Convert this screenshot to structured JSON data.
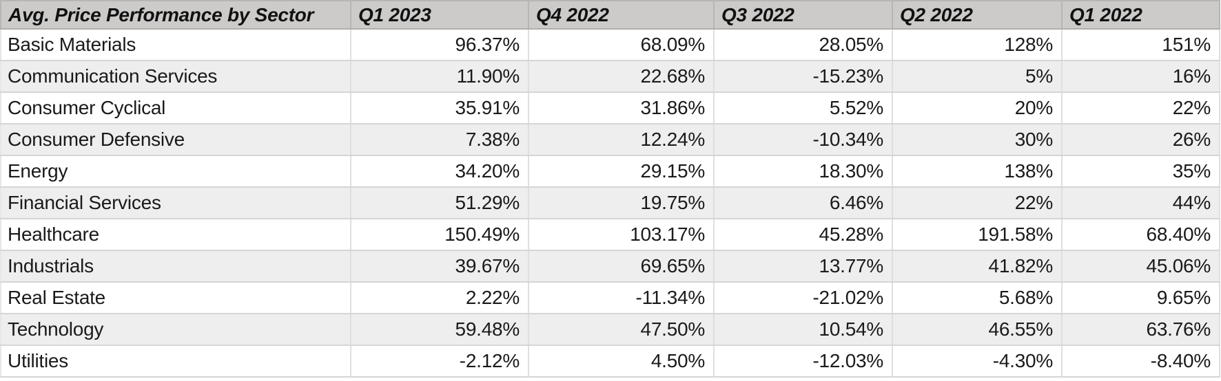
{
  "table": {
    "title": "Avg. Price Performance by Sector",
    "columns": [
      "Avg. Price Performance by Sector",
      "Q1 2023",
      "Q4 2022",
      "Q3 2022",
      "Q2 2022",
      "Q1 2022"
    ],
    "rows": [
      {
        "sector": "Basic Materials",
        "values": [
          "96.37%",
          "68.09%",
          "28.05%",
          "128%",
          "151%"
        ]
      },
      {
        "sector": "Communication Services",
        "values": [
          "11.90%",
          "22.68%",
          "-15.23%",
          "5%",
          "16%"
        ]
      },
      {
        "sector": "Consumer Cyclical",
        "values": [
          "35.91%",
          "31.86%",
          "5.52%",
          "20%",
          "22%"
        ]
      },
      {
        "sector": "Consumer Defensive",
        "values": [
          "7.38%",
          "12.24%",
          "-10.34%",
          "30%",
          "26%"
        ]
      },
      {
        "sector": "Energy",
        "values": [
          "34.20%",
          "29.15%",
          "18.30%",
          "138%",
          "35%"
        ]
      },
      {
        "sector": "Financial Services",
        "values": [
          "51.29%",
          "19.75%",
          "6.46%",
          "22%",
          "44%"
        ]
      },
      {
        "sector": "Healthcare",
        "values": [
          "150.49%",
          "103.17%",
          "45.28%",
          "191.58%",
          "68.40%"
        ]
      },
      {
        "sector": "Industrials",
        "values": [
          "39.67%",
          "69.65%",
          "13.77%",
          "41.82%",
          "45.06%"
        ]
      },
      {
        "sector": "Real Estate",
        "values": [
          "2.22%",
          "-11.34%",
          "-21.02%",
          "5.68%",
          "9.65%"
        ]
      },
      {
        "sector": "Technology",
        "values": [
          "59.48%",
          "47.50%",
          "10.54%",
          "46.55%",
          "63.76%"
        ]
      },
      {
        "sector": "Utilities",
        "values": [
          "-2.12%",
          "4.50%",
          "-12.03%",
          "-4.30%",
          "-8.40%"
        ]
      }
    ]
  },
  "colors": {
    "header_bg": "#cccbca",
    "header_border": "#b8b6b4",
    "stripe_bg": "#eeeeee",
    "gridline_horizontal": "#d5d5d5",
    "gridline_vertical": "#dfdfdf",
    "text": "#1a1a1a",
    "row_bg": "#ffffff"
  },
  "chart_data": {
    "type": "table",
    "title": "Avg. Price Performance by Sector",
    "columns": [
      "Sector",
      "Q1 2023",
      "Q4 2022",
      "Q3 2022",
      "Q2 2022",
      "Q1 2022"
    ],
    "unit": "percent",
    "rows": [
      [
        "Basic Materials",
        96.37,
        68.09,
        28.05,
        128,
        151
      ],
      [
        "Communication Services",
        11.9,
        22.68,
        -15.23,
        5,
        16
      ],
      [
        "Consumer Cyclical",
        35.91,
        31.86,
        5.52,
        20,
        22
      ],
      [
        "Consumer Defensive",
        7.38,
        12.24,
        -10.34,
        30,
        26
      ],
      [
        "Energy",
        34.2,
        29.15,
        18.3,
        138,
        35
      ],
      [
        "Financial Services",
        51.29,
        19.75,
        6.46,
        22,
        44
      ],
      [
        "Healthcare",
        150.49,
        103.17,
        45.28,
        191.58,
        68.4
      ],
      [
        "Industrials",
        39.67,
        69.65,
        13.77,
        41.82,
        45.06
      ],
      [
        "Real Estate",
        2.22,
        -11.34,
        -21.02,
        5.68,
        9.65
      ],
      [
        "Technology",
        59.48,
        47.5,
        10.54,
        46.55,
        63.76
      ],
      [
        "Utilities",
        -2.12,
        4.5,
        -12.03,
        -4.3,
        -8.4
      ]
    ]
  }
}
